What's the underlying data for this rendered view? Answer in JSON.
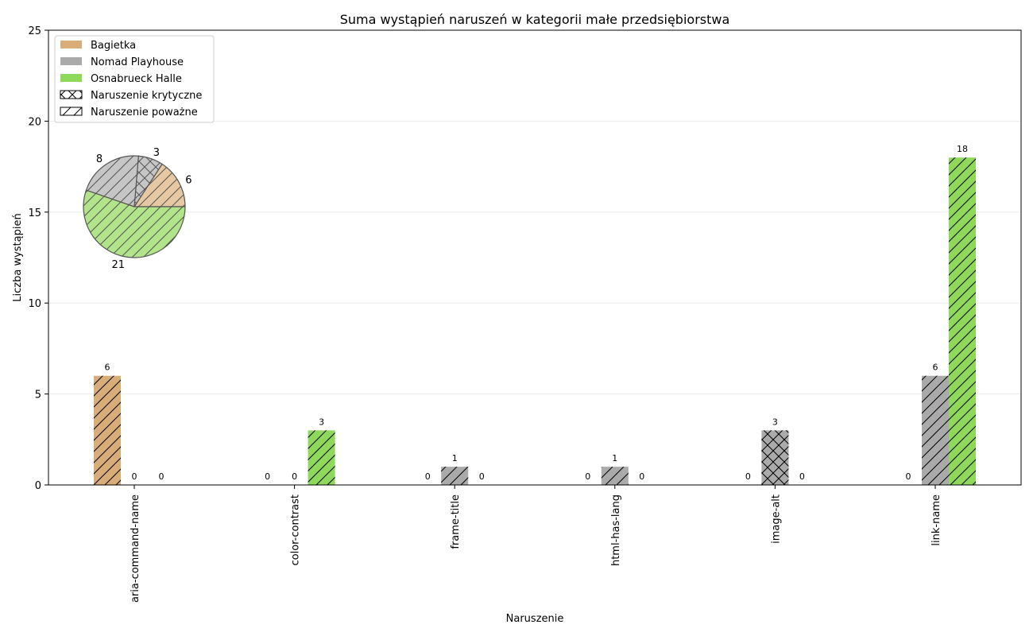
{
  "chart_data": {
    "type": "bar",
    "title": "Suma wystąpień naruszeń w kategorii małe przedsiębiorstwa",
    "xlabel": "Naruszenie",
    "ylabel": "Liczba wystąpień",
    "ylim": [
      0,
      25
    ],
    "yticks": [
      "0",
      "5",
      "10",
      "15",
      "20",
      "25"
    ],
    "grid": "horizontal",
    "legend_position": "top-left",
    "categories": [
      "aria-command-name",
      "color-contrast",
      "frame-title",
      "html-has-lang",
      "image-alt",
      "link-name"
    ],
    "series": [
      {
        "name": "Bagietka",
        "color": "#d8ad78",
        "values": [
          6,
          0,
          0,
          0,
          0,
          0
        ]
      },
      {
        "name": "Nomad Playhouse",
        "color": "#aaaaaa",
        "values": [
          0,
          0,
          1,
          1,
          3,
          6
        ]
      },
      {
        "name": "Osnabrueck Halle",
        "color": "#8fd95a",
        "values": [
          0,
          3,
          0,
          0,
          0,
          18
        ]
      }
    ],
    "severity_hatch": [
      [
        "serious",
        "serious",
        "serious"
      ],
      [
        "serious",
        "serious",
        "serious"
      ],
      [
        "serious",
        "serious",
        "serious"
      ],
      [
        "serious",
        "serious",
        "serious"
      ],
      [
        "critical",
        "critical",
        "critical"
      ],
      [
        "serious",
        "serious",
        "serious"
      ]
    ],
    "hatch_legend": [
      {
        "label": "Naruszenie krytyczne",
        "hatch": "critical"
      },
      {
        "label": "Naruszenie poważne",
        "hatch": "serious"
      }
    ],
    "pie": {
      "slices": [
        {
          "series": "Bagietka",
          "severity": "serious",
          "value": 6,
          "label": "6",
          "color": "#e6c9a2"
        },
        {
          "series": "Nomad Playhouse",
          "severity": "critical",
          "value": 3,
          "label": "3",
          "color": "#c6c6c6"
        },
        {
          "series": "Nomad Playhouse",
          "severity": "serious",
          "value": 8,
          "label": "8",
          "color": "#c6c6c6"
        },
        {
          "series": "Osnabrueck Halle",
          "severity": "serious",
          "value": 21,
          "label": "21",
          "color": "#b2e48a"
        }
      ]
    }
  }
}
